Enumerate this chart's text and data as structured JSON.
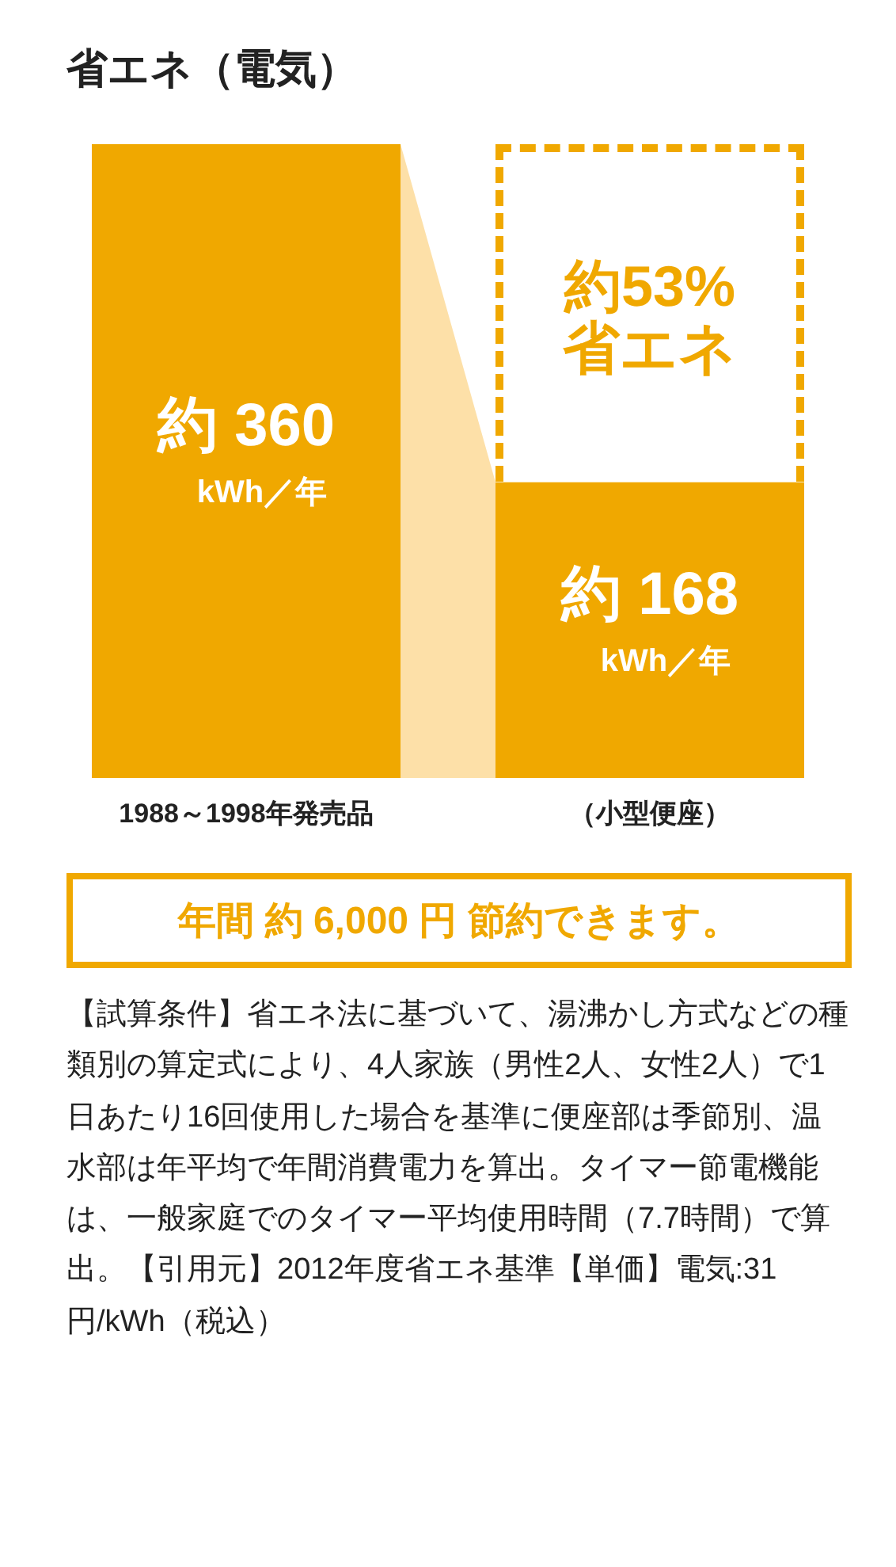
{
  "chart_data": {
    "type": "bar",
    "title": "省エネ（電気）",
    "categories": [
      "1988～1998年発売品",
      "（小型便座）"
    ],
    "values": [
      360,
      168
    ],
    "color": "#f0a800",
    "value_labels": [
      "約 360 kWh／年",
      "約 168 kWh／年"
    ],
    "annotations": [
      "約53% 省エネ",
      "年間 約 6,000 円 節約できます。",
      "【試算条件】省エネ法に基づいて、湯沸かし方式などの種類別の算定式により、4人家族（男性2人、女性2人）で1日あたり16回使用した場合を基準に便座部は季節別、温水部は年平均で年間消費電力を算出。タイマー節電機能は、一般家庭でのタイマー平均使用時間（7.7時間）で算出。【引用元】2012年度省エネ基準【単価】電気:31円/kWh（税込）"
    ]
  }
}
